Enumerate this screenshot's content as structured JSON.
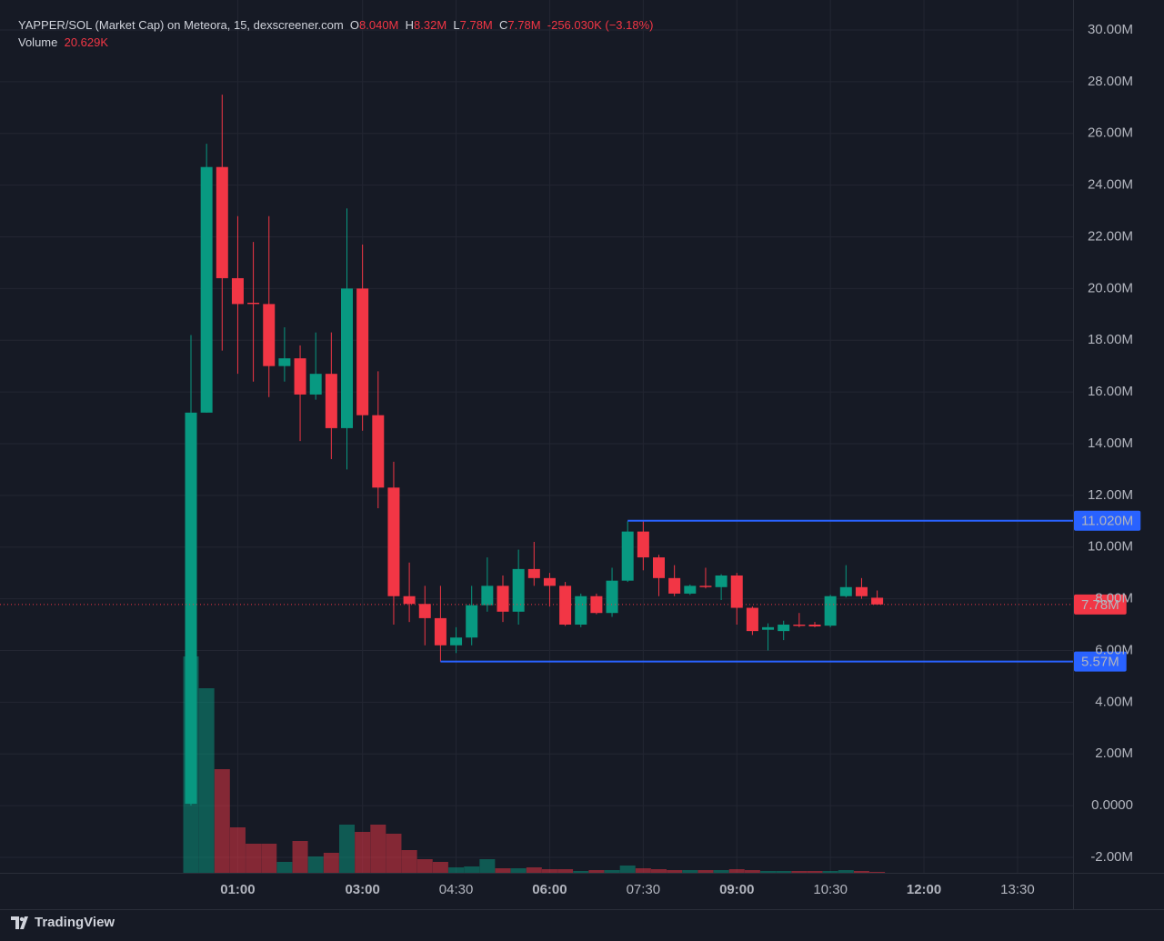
{
  "chart_data": {
    "type": "candlestick",
    "legend": {
      "symbol": "YAPPER/SOL (Market Cap) on Meteora, 15, dexscreener.com",
      "o_key": "O",
      "o": "8.040M",
      "h_key": "H",
      "h": "8.32M",
      "l_key": "L",
      "l": "7.78M",
      "c_key": "C",
      "c": "7.78M",
      "change": "-256.030K (−3.18%)",
      "volume_key": "Volume",
      "volume": "20.629K"
    },
    "x": [
      "00:15",
      "00:30",
      "00:45",
      "01:00",
      "01:15",
      "01:30",
      "01:45",
      "02:00",
      "02:15",
      "02:30",
      "02:45",
      "03:00",
      "03:15",
      "03:30",
      "03:45",
      "04:00",
      "04:15",
      "04:30",
      "04:45",
      "05:00",
      "05:15",
      "05:30",
      "05:45",
      "06:00",
      "06:15",
      "06:30",
      "06:45",
      "07:00",
      "07:15",
      "07:30",
      "07:45",
      "08:00",
      "08:15",
      "08:30",
      "08:45",
      "09:00",
      "09:15",
      "09:30",
      "09:45",
      "10:00",
      "10:15",
      "10:30",
      "10:45",
      "11:00",
      "11:15"
    ],
    "open": [
      0.07,
      15.2,
      24.7,
      20.4,
      19.45,
      19.4,
      17.0,
      17.3,
      15.9,
      16.7,
      14.6,
      20.0,
      15.1,
      12.3,
      8.1,
      7.8,
      7.25,
      6.2,
      6.5,
      7.75,
      8.5,
      7.5,
      9.15,
      8.8,
      8.5,
      7.0,
      8.1,
      7.45,
      8.7,
      10.6,
      9.6,
      8.8,
      8.2,
      8.5,
      8.45,
      8.9,
      7.65,
      6.8,
      6.75,
      7.0,
      7.0,
      6.96,
      8.1,
      8.45,
      8.04
    ],
    "high": [
      18.2,
      25.6,
      27.5,
      22.8,
      21.8,
      22.8,
      18.5,
      17.8,
      18.3,
      18.3,
      23.1,
      21.7,
      16.8,
      13.3,
      9.4,
      8.5,
      8.5,
      6.9,
      8.5,
      9.6,
      8.9,
      9.9,
      10.2,
      9.0,
      8.65,
      8.2,
      8.2,
      9.2,
      11.0,
      11.02,
      9.7,
      9.3,
      8.55,
      9.2,
      8.95,
      9.0,
      7.7,
      7.05,
      7.15,
      7.45,
      7.1,
      8.15,
      9.3,
      8.8,
      8.32
    ],
    "low": [
      0.0,
      15.2,
      17.6,
      16.7,
      16.4,
      15.8,
      16.4,
      14.1,
      15.7,
      13.4,
      13.0,
      14.5,
      11.5,
      7.0,
      7.1,
      6.2,
      5.57,
      5.9,
      6.2,
      7.5,
      7.1,
      7.0,
      8.5,
      7.7,
      6.95,
      6.9,
      7.4,
      7.3,
      8.65,
      9.1,
      8.1,
      8.1,
      8.15,
      8.4,
      7.95,
      7.0,
      6.6,
      6.0,
      6.4,
      6.9,
      6.9,
      6.9,
      8.05,
      8.0,
      7.78
    ],
    "close": [
      15.2,
      24.7,
      20.4,
      19.4,
      19.4,
      17.0,
      17.3,
      15.9,
      16.7,
      14.6,
      20.0,
      15.1,
      12.3,
      8.1,
      7.8,
      7.25,
      6.2,
      6.5,
      7.75,
      8.5,
      7.5,
      9.15,
      8.8,
      8.5,
      7.0,
      8.1,
      7.45,
      8.7,
      10.6,
      9.6,
      8.8,
      8.2,
      8.5,
      8.45,
      8.9,
      7.65,
      6.75,
      6.9,
      7.0,
      6.95,
      6.93,
      8.1,
      8.45,
      8.1,
      7.78
    ],
    "volume": [
      4760,
      4060,
      2280,
      1000,
      640,
      640,
      240,
      700,
      360,
      440,
      1060,
      900,
      1060,
      860,
      500,
      300,
      240,
      120,
      140,
      300,
      100,
      100,
      120,
      80,
      80,
      40,
      60,
      60,
      160,
      100,
      80,
      60,
      60,
      60,
      60,
      80,
      60,
      40,
      40,
      40,
      40,
      40,
      60,
      40,
      20.629
    ],
    "up_color": "#089981",
    "down_color": "#f23645",
    "ylim": [
      -2.6,
      31.16
    ],
    "yticks": [
      {
        "value": 30,
        "label": "30.00M"
      },
      {
        "value": 28,
        "label": "28.00M"
      },
      {
        "value": 26,
        "label": "26.00M"
      },
      {
        "value": 24,
        "label": "24.00M"
      },
      {
        "value": 22,
        "label": "22.00M"
      },
      {
        "value": 20,
        "label": "20.00M"
      },
      {
        "value": 18,
        "label": "18.00M"
      },
      {
        "value": 16,
        "label": "16.00M"
      },
      {
        "value": 14,
        "label": "14.00M"
      },
      {
        "value": 12,
        "label": "12.00M"
      },
      {
        "value": 10,
        "label": "10.00M"
      },
      {
        "value": 8,
        "label": "8.00M"
      },
      {
        "value": 6,
        "label": "6.00M"
      },
      {
        "value": 4,
        "label": "4.00M"
      },
      {
        "value": 2,
        "label": "2.00M"
      },
      {
        "value": 0,
        "label": "0.0000"
      },
      {
        "value": -2,
        "label": "-2.00M"
      }
    ],
    "xticks": [
      "01:00",
      "03:00",
      "04:30",
      "06:00",
      "07:30",
      "09:00",
      "10:30",
      "12:00",
      "13:30"
    ],
    "grid": true,
    "levels": [
      {
        "value": 11.02,
        "label": "11.020M",
        "from": "07:15",
        "color": "#2962ff"
      },
      {
        "value": 5.57,
        "label": "5.57M",
        "from": "04:15",
        "color": "#2962ff"
      }
    ],
    "last_price": {
      "value": 7.78,
      "label": "7.78M",
      "color": "#f23645"
    },
    "brand": "TradingView"
  }
}
